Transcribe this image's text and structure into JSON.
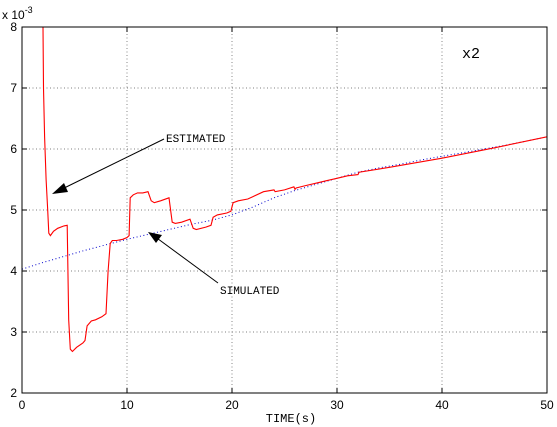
{
  "chart_data": {
    "type": "line",
    "title": "",
    "xlabel": "TIME(s)",
    "ylabel": "",
    "y_exponent_label": "x 10",
    "y_exponent_power": "-3",
    "panel_label": "x2",
    "xlim": [
      0,
      50
    ],
    "ylim": [
      2,
      8
    ],
    "x_ticks": [
      "0",
      "10",
      "20",
      "30",
      "40",
      "50"
    ],
    "y_ticks": [
      "2",
      "3",
      "4",
      "5",
      "6",
      "7",
      "8"
    ],
    "grid": true,
    "colors": {
      "estimated": "#ff0000",
      "simulated": "#0000cc",
      "axes": "#000000"
    },
    "series": [
      {
        "name": "ESTIMATED",
        "style": "solid",
        "x": [
          2.0,
          2.05,
          2.15,
          2.3,
          2.45,
          2.55,
          2.7,
          3.0,
          3.4,
          4.0,
          4.3,
          4.45,
          4.6,
          4.8,
          5.2,
          5.8,
          6.0,
          6.2,
          6.6,
          7.0,
          7.6,
          8.0,
          8.2,
          8.4,
          8.6,
          9.0,
          9.6,
          10.0,
          10.2,
          10.3,
          10.6,
          11.0,
          11.5,
          12.0,
          12.3,
          12.6,
          13.2,
          14.0,
          14.3,
          14.6,
          15.2,
          16.0,
          16.3,
          16.6,
          17.5,
          18.0,
          18.2,
          18.6,
          19.5,
          19.9,
          20.1,
          20.6,
          21.5,
          22.0,
          23.0,
          24.0,
          24.1,
          25.0,
          25.9,
          26.0,
          26.1,
          27.0,
          28.0,
          29.0,
          30.0,
          31.0,
          32.0,
          32.1,
          35.0,
          40.0,
          45.0,
          50.0
        ],
        "y": [
          8.0,
          7.0,
          6.2,
          5.5,
          5.0,
          4.62,
          4.58,
          4.65,
          4.7,
          4.74,
          4.75,
          3.2,
          2.72,
          2.68,
          2.75,
          2.82,
          2.86,
          3.1,
          3.18,
          3.2,
          3.25,
          3.3,
          4.0,
          4.45,
          4.5,
          4.5,
          4.52,
          4.55,
          4.58,
          5.2,
          5.25,
          5.28,
          5.28,
          5.3,
          5.15,
          5.12,
          5.15,
          5.2,
          4.8,
          4.78,
          4.8,
          4.85,
          4.7,
          4.68,
          4.72,
          4.75,
          4.88,
          4.92,
          4.95,
          4.98,
          5.12,
          5.15,
          5.18,
          5.22,
          5.3,
          5.33,
          5.3,
          5.33,
          5.38,
          5.34,
          5.36,
          5.4,
          5.44,
          5.48,
          5.52,
          5.56,
          5.58,
          5.62,
          5.7,
          5.85,
          6.02,
          6.2
        ]
      },
      {
        "name": "SIMULATED",
        "style": "dotted",
        "x": [
          0,
          2,
          4,
          6,
          8,
          10,
          12,
          14,
          16,
          18,
          20,
          22,
          24,
          26,
          28,
          30,
          32,
          34,
          36,
          38,
          40,
          42,
          44,
          46,
          48,
          50
        ],
        "y": [
          4.03,
          4.14,
          4.24,
          4.34,
          4.43,
          4.52,
          4.6,
          4.68,
          4.76,
          4.83,
          4.92,
          5.05,
          5.2,
          5.32,
          5.42,
          5.52,
          5.62,
          5.69,
          5.75,
          5.82,
          5.88,
          5.94,
          6.0,
          6.06,
          6.13,
          6.2
        ]
      }
    ],
    "annotations": [
      {
        "text": "ESTIMATED",
        "points_to": {
          "x": 3.0,
          "y": 5.27
        }
      },
      {
        "text": "SIMULATED",
        "points_to": {
          "x": 11.6,
          "y": 4.64
        }
      }
    ]
  }
}
